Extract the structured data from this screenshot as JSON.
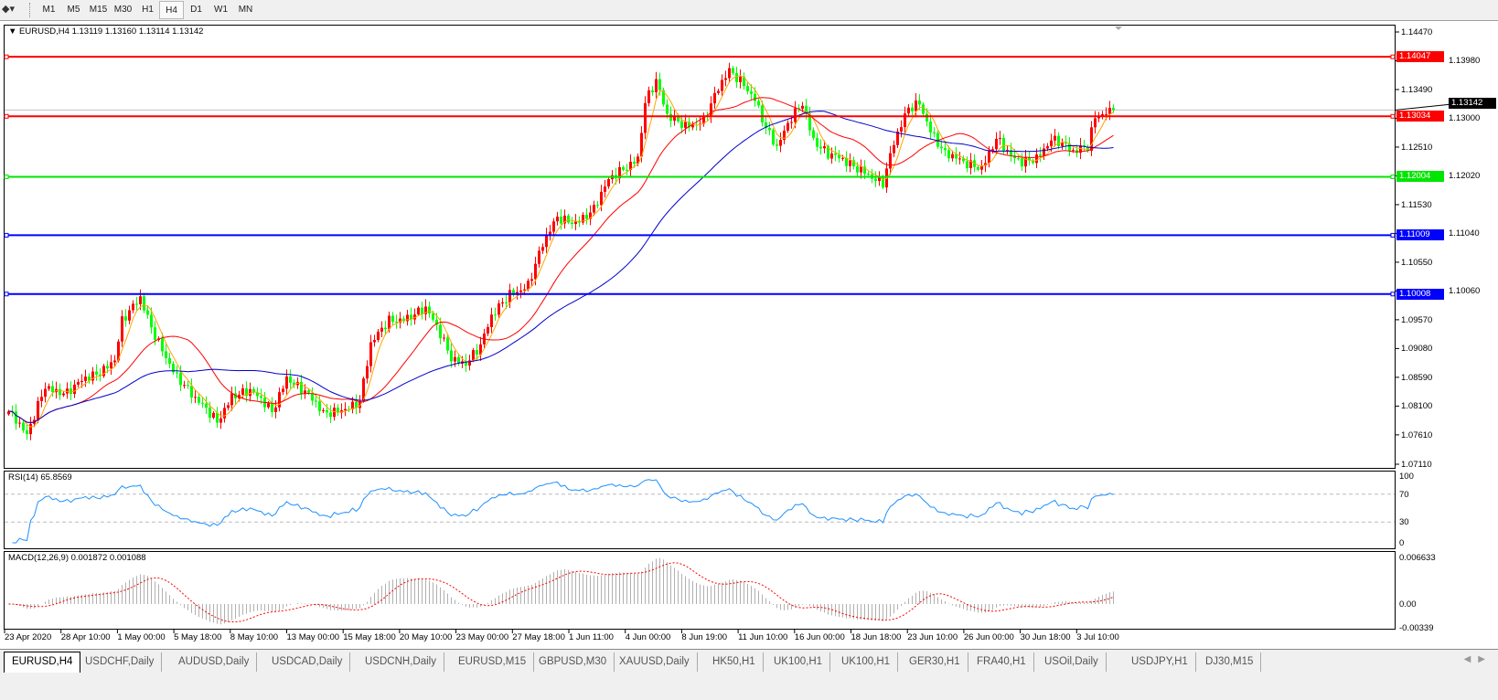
{
  "toolbar": {
    "timeframes": [
      "M1",
      "M5",
      "M15",
      "M30",
      "H1",
      "H4",
      "D1",
      "W1",
      "MN"
    ],
    "active_timeframe": "H4"
  },
  "chart": {
    "header": "EURUSD,H4  1.13119 1.13160 1.13114 1.13142",
    "symbol": "EURUSD",
    "timeframe": "H4",
    "ohlc": {
      "open": 1.13119,
      "high": 1.1316,
      "low": 1.13114,
      "close": 1.13142
    },
    "current_price": "1.13142",
    "price_ticks": [
      "1.14470",
      "1.13980",
      "1.13490",
      "1.13000",
      "1.12510",
      "1.12020",
      "1.11530",
      "1.11040",
      "1.10550",
      "1.10060",
      "1.09570",
      "1.09080",
      "1.08590",
      "1.08100",
      "1.07610",
      "1.07110"
    ],
    "price_range": [
      1.0711,
      1.1447
    ],
    "levels": [
      {
        "price": 1.14047,
        "label": "1.14047",
        "color": "#ff0000"
      },
      {
        "price": 1.13034,
        "label": "1.13034",
        "color": "#ff0000"
      },
      {
        "price": 1.12004,
        "label": "1.12004",
        "color": "#00e600"
      },
      {
        "price": 1.11009,
        "label": "1.11009",
        "color": "#0000ff"
      },
      {
        "price": 1.10008,
        "label": "1.10008",
        "color": "#0000ff"
      }
    ],
    "bull_color": "#ff0000",
    "bear_color": "#00ff00",
    "ma_colors": [
      "#ffa500",
      "#ff0000",
      "#0000cc"
    ],
    "close_keypoints": [
      [
        0,
        1.0801
      ],
      [
        5,
        1.0755
      ],
      [
        10,
        1.0848
      ],
      [
        16,
        1.0832
      ],
      [
        24,
        1.0864
      ],
      [
        29,
        1.0895
      ],
      [
        31,
        1.0957
      ],
      [
        36,
        1.0988
      ],
      [
        39,
        1.0941
      ],
      [
        42,
        1.091
      ],
      [
        46,
        1.0864
      ],
      [
        51,
        1.0817
      ],
      [
        57,
        1.0786
      ],
      [
        61,
        1.0832
      ],
      [
        66,
        1.0832
      ],
      [
        72,
        1.0801
      ],
      [
        76,
        1.0864
      ],
      [
        81,
        1.0832
      ],
      [
        86,
        1.0794
      ],
      [
        91,
        1.0809
      ],
      [
        96,
        1.0817
      ],
      [
        99,
        1.091
      ],
      [
        104,
        1.0957
      ],
      [
        109,
        1.0965
      ],
      [
        114,
        1.0972
      ],
      [
        117,
        1.0941
      ],
      [
        121,
        1.0895
      ],
      [
        125,
        1.0887
      ],
      [
        129,
        1.091
      ],
      [
        132,
        1.0957
      ],
      [
        137,
        1.1004
      ],
      [
        142,
        1.1019
      ],
      [
        146,
        1.1081
      ],
      [
        150,
        1.1128
      ],
      [
        155,
        1.1128
      ],
      [
        160,
        1.1144
      ],
      [
        164,
        1.119
      ],
      [
        169,
        1.1221
      ],
      [
        172,
        1.1237
      ],
      [
        174,
        1.133
      ],
      [
        177,
        1.1361
      ],
      [
        180,
        1.1299
      ],
      [
        185,
        1.1291
      ],
      [
        190,
        1.1299
      ],
      [
        194,
        1.1346
      ],
      [
        197,
        1.1377
      ],
      [
        201,
        1.1361
      ],
      [
        204,
        1.1338
      ],
      [
        207,
        1.1284
      ],
      [
        210,
        1.1245
      ],
      [
        214,
        1.1299
      ],
      [
        217,
        1.133
      ],
      [
        220,
        1.1268
      ],
      [
        224,
        1.1237
      ],
      [
        229,
        1.1221
      ],
      [
        234,
        1.1214
      ],
      [
        239,
        1.119
      ],
      [
        242,
        1.1253
      ],
      [
        246,
        1.1315
      ],
      [
        249,
        1.133
      ],
      [
        252,
        1.1284
      ],
      [
        256,
        1.1237
      ],
      [
        261,
        1.1221
      ],
      [
        266,
        1.1221
      ],
      [
        270,
        1.1268
      ],
      [
        274,
        1.123
      ],
      [
        277,
        1.1221
      ],
      [
        281,
        1.1237
      ],
      [
        285,
        1.1268
      ],
      [
        287,
        1.126
      ],
      [
        291,
        1.1237
      ],
      [
        295,
        1.1253
      ],
      [
        297,
        1.1307
      ],
      [
        300,
        1.1315
      ],
      [
        302,
        1.13142
      ]
    ],
    "time_labels": [
      "23 Apr 2020",
      "28 Apr 10:00",
      "1 May 00:00",
      "5 May 18:00",
      "8 May 10:00",
      "13 May 00:00",
      "15 May 18:00",
      "20 May 10:00",
      "23 May 00:00",
      "27 May 18:00",
      "1 Jun 11:00",
      "4 Jun 00:00",
      "8 Jun 19:00",
      "11 Jun 10:00",
      "16 Jun 00:00",
      "18 Jun 18:00",
      "23 Jun 10:00",
      "26 Jun 00:00",
      "30 Jun 18:00",
      "3 Jul 10:00"
    ]
  },
  "rsi": {
    "label": "RSI(14) 65.8569",
    "ticks": [
      "100",
      "70",
      "30",
      "0"
    ],
    "line_color": "#1e90ff"
  },
  "macd": {
    "label": "MACD(12,26,9) 0.001872 0.001088",
    "ticks": [
      "0.006633",
      "0.00",
      "-0.00339"
    ],
    "range": [
      -0.00339,
      0.006633
    ],
    "signal_color": "#ff0000",
    "histogram_color": "#b0b0b0"
  },
  "tabs": [
    "EURUSD,H4",
    "USDCHF,Daily",
    "AUDUSD,Daily",
    "USDCAD,Daily",
    "USDCNH,Daily",
    "EURUSD,M15",
    "GBPUSD,M30",
    "XAUUSD,Daily",
    "HK50,H1",
    "UK100,H1",
    "UK100,H1",
    "GER30,H1",
    "FRA40,H1",
    "USOil,Daily",
    "USDJPY,H1",
    "DJ30,M15"
  ],
  "active_tab": "EURUSD,H4"
}
